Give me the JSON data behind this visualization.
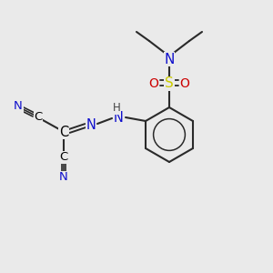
{
  "background_color": "#eaeaea",
  "colors": {
    "C": "#000000",
    "N": "#1010cc",
    "O": "#cc0000",
    "S": "#cccc00",
    "H": "#444444",
    "bond": "#2a2a2a"
  },
  "figsize": [
    3.0,
    3.0
  ],
  "dpi": 100
}
